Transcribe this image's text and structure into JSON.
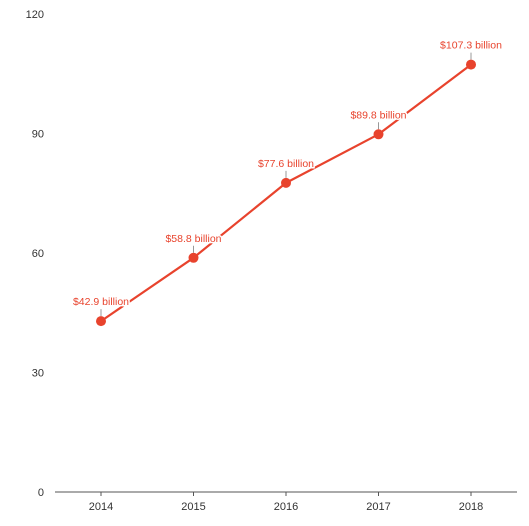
{
  "colors": {
    "series": "#e8432d",
    "axis": "#555555",
    "label_halo": "#ffffff",
    "tick_text": "#333333"
  },
  "chart_data": {
    "type": "line",
    "title": "",
    "xlabel": "",
    "ylabel": "",
    "categories": [
      "2014",
      "2015",
      "2016",
      "2017",
      "2018"
    ],
    "series": [
      {
        "values": [
          42.9,
          58.8,
          77.6,
          89.8,
          107.3
        ],
        "data_labels": [
          "$42.9 billion",
          "$58.8 billion",
          "$77.6 billion",
          "$89.8 billion",
          "$107.3 billion"
        ]
      }
    ],
    "ylim": [
      0,
      120
    ],
    "yticks": [
      "0",
      "30",
      "60",
      "90",
      "120"
    ],
    "grid": false,
    "legend": "none"
  }
}
